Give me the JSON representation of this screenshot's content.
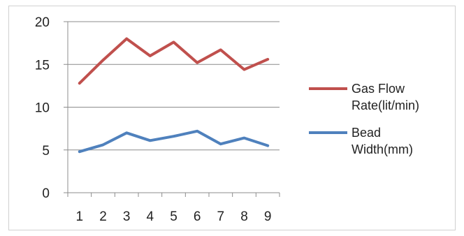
{
  "chart_data": {
    "type": "line",
    "title": "",
    "xlabel": "",
    "ylabel": "",
    "categories": [
      "1",
      "2",
      "3",
      "4",
      "5",
      "6",
      "7",
      "8",
      "9"
    ],
    "ylim": [
      0,
      20
    ],
    "yticks": [
      "0",
      "5",
      "10",
      "15",
      "20"
    ],
    "grid": true,
    "legend_position": "right",
    "series": [
      {
        "name": "Gas Flow Rate(lit/min)",
        "name_lines": [
          "Gas Flow",
          "Rate(lit/min)"
        ],
        "color": "#c0504d",
        "values": [
          12.8,
          15.5,
          18.0,
          16.0,
          17.6,
          15.2,
          16.7,
          14.4,
          15.6
        ]
      },
      {
        "name": "Bead Width(mm)",
        "name_lines": [
          "Bead",
          "Width(mm)"
        ],
        "color": "#4f81bd",
        "values": [
          4.8,
          5.6,
          7.0,
          6.1,
          6.6,
          7.2,
          5.7,
          6.4,
          5.5
        ]
      }
    ]
  }
}
